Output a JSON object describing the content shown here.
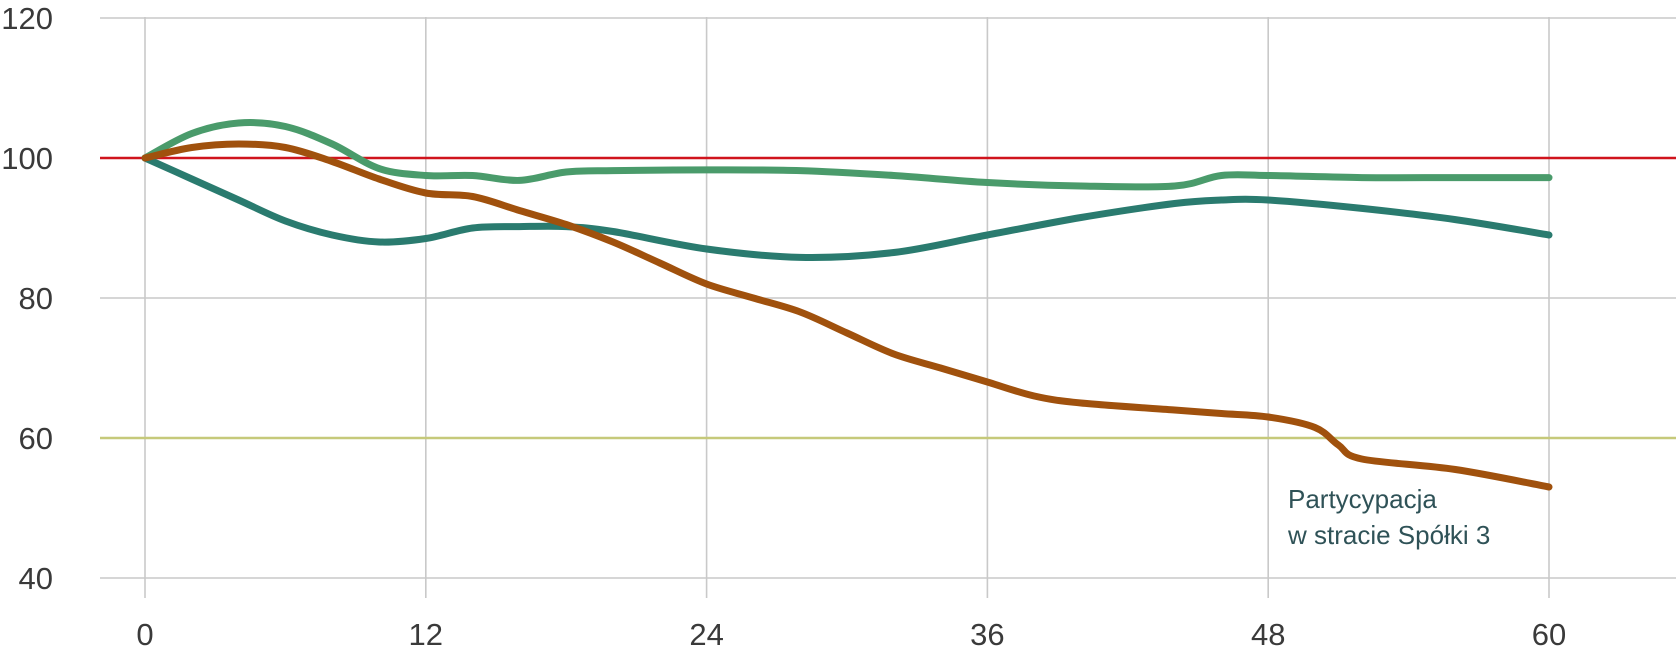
{
  "chart_data": {
    "type": "line",
    "xlim": [
      0,
      64
    ],
    "ylim": [
      40,
      120
    ],
    "x_ticks": [
      0,
      12,
      24,
      36,
      48,
      60
    ],
    "y_ticks": [
      40,
      60,
      80,
      100,
      120
    ],
    "x_tick_labels": [
      "0",
      "12",
      "24",
      "36",
      "48",
      "60"
    ],
    "y_tick_labels": [
      "40",
      "60",
      "80",
      "100",
      "120"
    ],
    "grid": true,
    "reference_lines": [
      {
        "y": 100,
        "color": "#d0141d"
      },
      {
        "y": 60,
        "color": "#c6c97a"
      }
    ],
    "series": [
      {
        "color": "#4a9b6b",
        "x": [
          0,
          2,
          4,
          6,
          8,
          10,
          12,
          14,
          16,
          18,
          20,
          24,
          28,
          32,
          36,
          40,
          44,
          46,
          48,
          52,
          56,
          60
        ],
        "y": [
          100,
          103.5,
          105,
          104.5,
          102,
          98.5,
          97.5,
          97.5,
          96.8,
          98,
          98.2,
          98.3,
          98.2,
          97.5,
          96.5,
          96,
          96,
          97.5,
          97.5,
          97.2,
          97.2,
          97.2
        ]
      },
      {
        "color": "#2a7b6f",
        "x": [
          0,
          2,
          4,
          6,
          8,
          10,
          12,
          14,
          16,
          18,
          20,
          24,
          28,
          32,
          36,
          40,
          44,
          46,
          48,
          52,
          56,
          60
        ],
        "y": [
          100,
          97,
          94,
          91,
          89,
          88,
          88.5,
          90,
          90.2,
          90.2,
          89.5,
          87,
          85.8,
          86.5,
          89,
          91.5,
          93.5,
          94,
          94,
          92.8,
          91.2,
          89
        ]
      },
      {
        "color": "#a0510d",
        "x": [
          0,
          2,
          4,
          6,
          8,
          10,
          12,
          14,
          16,
          18,
          20,
          22,
          24,
          26,
          28,
          30,
          32,
          34,
          36,
          38,
          40,
          44,
          46,
          48,
          50,
          51,
          52,
          56,
          60
        ],
        "y": [
          100,
          101.5,
          102,
          101.5,
          99.5,
          97,
          95,
          94.5,
          92.5,
          90.5,
          88,
          85,
          82,
          80,
          78,
          75,
          72,
          70,
          68,
          66,
          65,
          64,
          63.5,
          63,
          61.5,
          59,
          57,
          55.5,
          53
        ]
      }
    ],
    "annotations": [
      {
        "lines": [
          "Partycypacja",
          "w stracie Spółki 3"
        ]
      }
    ]
  }
}
